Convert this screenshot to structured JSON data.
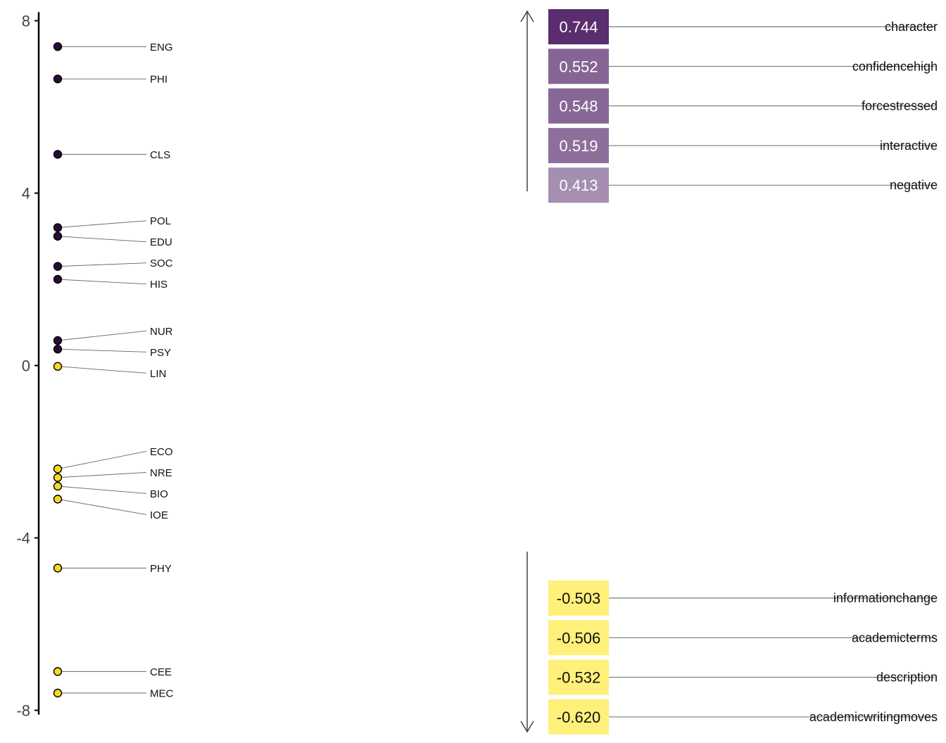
{
  "chart_data": [
    {
      "type": "scatter",
      "title": "",
      "ylabel": "",
      "ylim": [
        -8.1,
        8.2
      ],
      "yticks": [
        8,
        4,
        0,
        -4,
        -8
      ],
      "points": [
        {
          "label": "ENG",
          "y": 7.4,
          "group": "positive"
        },
        {
          "label": "PHI",
          "y": 6.65,
          "group": "positive"
        },
        {
          "label": "CLS",
          "y": 4.9,
          "group": "positive"
        },
        {
          "label": "POL",
          "y": 3.2,
          "group": "positive"
        },
        {
          "label": "EDU",
          "y": 3.0,
          "group": "positive"
        },
        {
          "label": "SOC",
          "y": 2.3,
          "group": "positive"
        },
        {
          "label": "HIS",
          "y": 2.0,
          "group": "positive"
        },
        {
          "label": "NUR",
          "y": 0.58,
          "group": "positive"
        },
        {
          "label": "PSY",
          "y": 0.38,
          "group": "positive"
        },
        {
          "label": "LIN",
          "y": -0.02,
          "group": "negative"
        },
        {
          "label": "ECO",
          "y": -2.4,
          "group": "negative"
        },
        {
          "label": "NRE",
          "y": -2.6,
          "group": "negative"
        },
        {
          "label": "BIO",
          "y": -2.8,
          "group": "negative"
        },
        {
          "label": "IOE",
          "y": -3.1,
          "group": "negative"
        },
        {
          "label": "PHY",
          "y": -4.7,
          "group": "negative"
        },
        {
          "label": "CEE",
          "y": -7.1,
          "group": "negative"
        },
        {
          "label": "MEC",
          "y": -7.6,
          "group": "negative"
        }
      ],
      "colors": {
        "positive": "#2a0a3a",
        "negative": "#f5d826"
      }
    },
    {
      "type": "bar",
      "title": "",
      "positive": [
        {
          "feature": "character",
          "value": 0.744,
          "text": "0.744"
        },
        {
          "feature": "confidencehigh",
          "value": 0.552,
          "text": "0.552"
        },
        {
          "feature": "forcestressed",
          "value": 0.548,
          "text": "0.548"
        },
        {
          "feature": "interactive",
          "value": 0.519,
          "text": "0.519"
        },
        {
          "feature": "negative",
          "value": 0.413,
          "text": "0.413"
        }
      ],
      "negative": [
        {
          "feature": "informationchange",
          "value": -0.503,
          "text": "-0.503"
        },
        {
          "feature": "academicterms",
          "value": -0.506,
          "text": "-0.506"
        },
        {
          "feature": "description",
          "value": -0.532,
          "text": "-0.532"
        },
        {
          "feature": "academicwritingmoves",
          "value": -0.62,
          "text": "-0.620"
        }
      ],
      "colors": {
        "positive": "#5a2d6e",
        "negative": "#fff07a"
      }
    }
  ]
}
